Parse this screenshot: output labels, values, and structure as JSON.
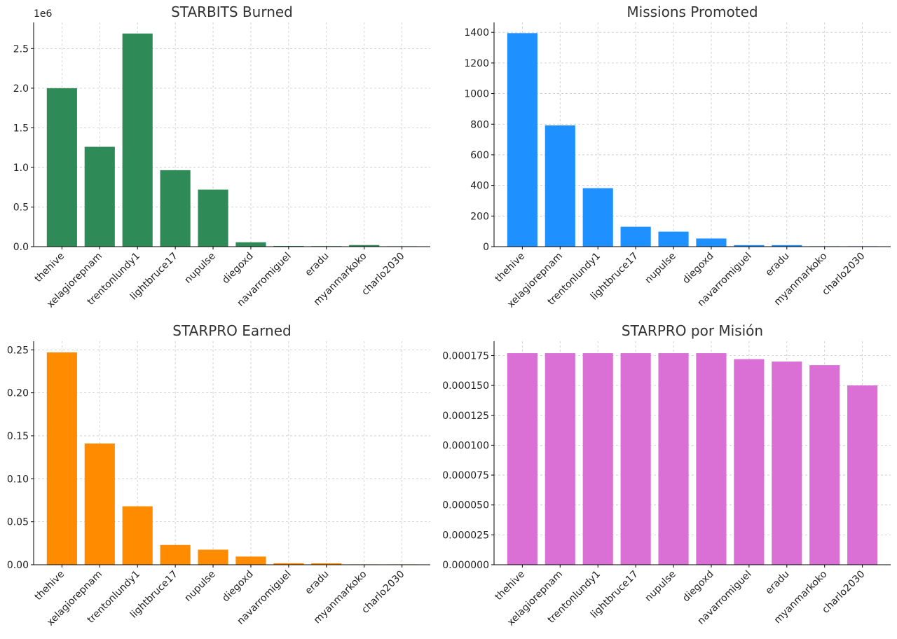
{
  "chart_data": [
    {
      "type": "bar",
      "title": "STARBITS Burned",
      "xlabel": "",
      "ylabel": "",
      "scale_label": "1e6",
      "categories": [
        "thehive",
        "xelagiorepnam",
        "trentonlundy1",
        "lightbruce17",
        "nupulse",
        "diegoxd",
        "navarromiguel",
        "eradu",
        "myanmarkoko",
        "charlo2030"
      ],
      "values": [
        2000000,
        1260000,
        2690000,
        965000,
        720000,
        55000,
        9000,
        7000,
        20000,
        2000
      ],
      "ylim": [
        0,
        2830000
      ],
      "yticks": [
        0,
        500000,
        1000000,
        1500000,
        2000000,
        2500000
      ],
      "ytick_labels": [
        "0.0",
        "0.5",
        "1.0",
        "1.5",
        "2.0",
        "2.5"
      ],
      "color": "#2e8b57",
      "grid": true
    },
    {
      "type": "bar",
      "title": "Missions Promoted",
      "xlabel": "",
      "ylabel": "",
      "categories": [
        "thehive",
        "xelagiorepnam",
        "trentonlundy1",
        "lightbruce17",
        "nupulse",
        "diegoxd",
        "navarromiguel",
        "eradu",
        "myanmarkoko",
        "charlo2030"
      ],
      "values": [
        1395,
        792,
        382,
        130,
        98,
        53,
        10,
        10,
        2,
        1
      ],
      "ylim": [
        0,
        1465
      ],
      "yticks": [
        0,
        200,
        400,
        600,
        800,
        1000,
        1200,
        1400
      ],
      "ytick_labels": [
        "0",
        "200",
        "400",
        "600",
        "800",
        "1000",
        "1200",
        "1400"
      ],
      "color": "#1e90ff",
      "grid": true
    },
    {
      "type": "bar",
      "title": "STARPRO Earned",
      "xlabel": "",
      "ylabel": "",
      "categories": [
        "thehive",
        "xelagiorepnam",
        "trentonlundy1",
        "lightbruce17",
        "nupulse",
        "diegoxd",
        "navarromiguel",
        "eradu",
        "myanmarkoko",
        "charlo2030"
      ],
      "values": [
        0.247,
        0.141,
        0.068,
        0.023,
        0.0175,
        0.0095,
        0.0018,
        0.0017,
        0.0003,
        0.0002
      ],
      "ylim": [
        0,
        0.26
      ],
      "yticks": [
        0,
        0.05,
        0.1,
        0.15,
        0.2,
        0.25
      ],
      "ytick_labels": [
        "0.00",
        "0.05",
        "0.10",
        "0.15",
        "0.20",
        "0.25"
      ],
      "color": "#ff8c00",
      "grid": true
    },
    {
      "type": "bar",
      "title": "STARPRO por Misión",
      "xlabel": "",
      "ylabel": "",
      "categories": [
        "thehive",
        "xelagiorepnam",
        "trentonlundy1",
        "lightbruce17",
        "nupulse",
        "diegoxd",
        "navarromiguel",
        "eradu",
        "myanmarkoko",
        "charlo2030"
      ],
      "values": [
        0.000177,
        0.000177,
        0.000177,
        0.000177,
        0.000177,
        0.000177,
        0.000172,
        0.00017,
        0.000167,
        0.00015
      ],
      "ylim": [
        0,
        0.000187
      ],
      "yticks": [
        0,
        2.5e-05,
        5e-05,
        7.5e-05,
        0.0001,
        0.000125,
        0.00015,
        0.000175
      ],
      "ytick_labels": [
        "0.000000",
        "0.000025",
        "0.000050",
        "0.000075",
        "0.000100",
        "0.000125",
        "0.000150",
        "0.000175"
      ],
      "color": "#da70d6",
      "grid": true
    }
  ]
}
